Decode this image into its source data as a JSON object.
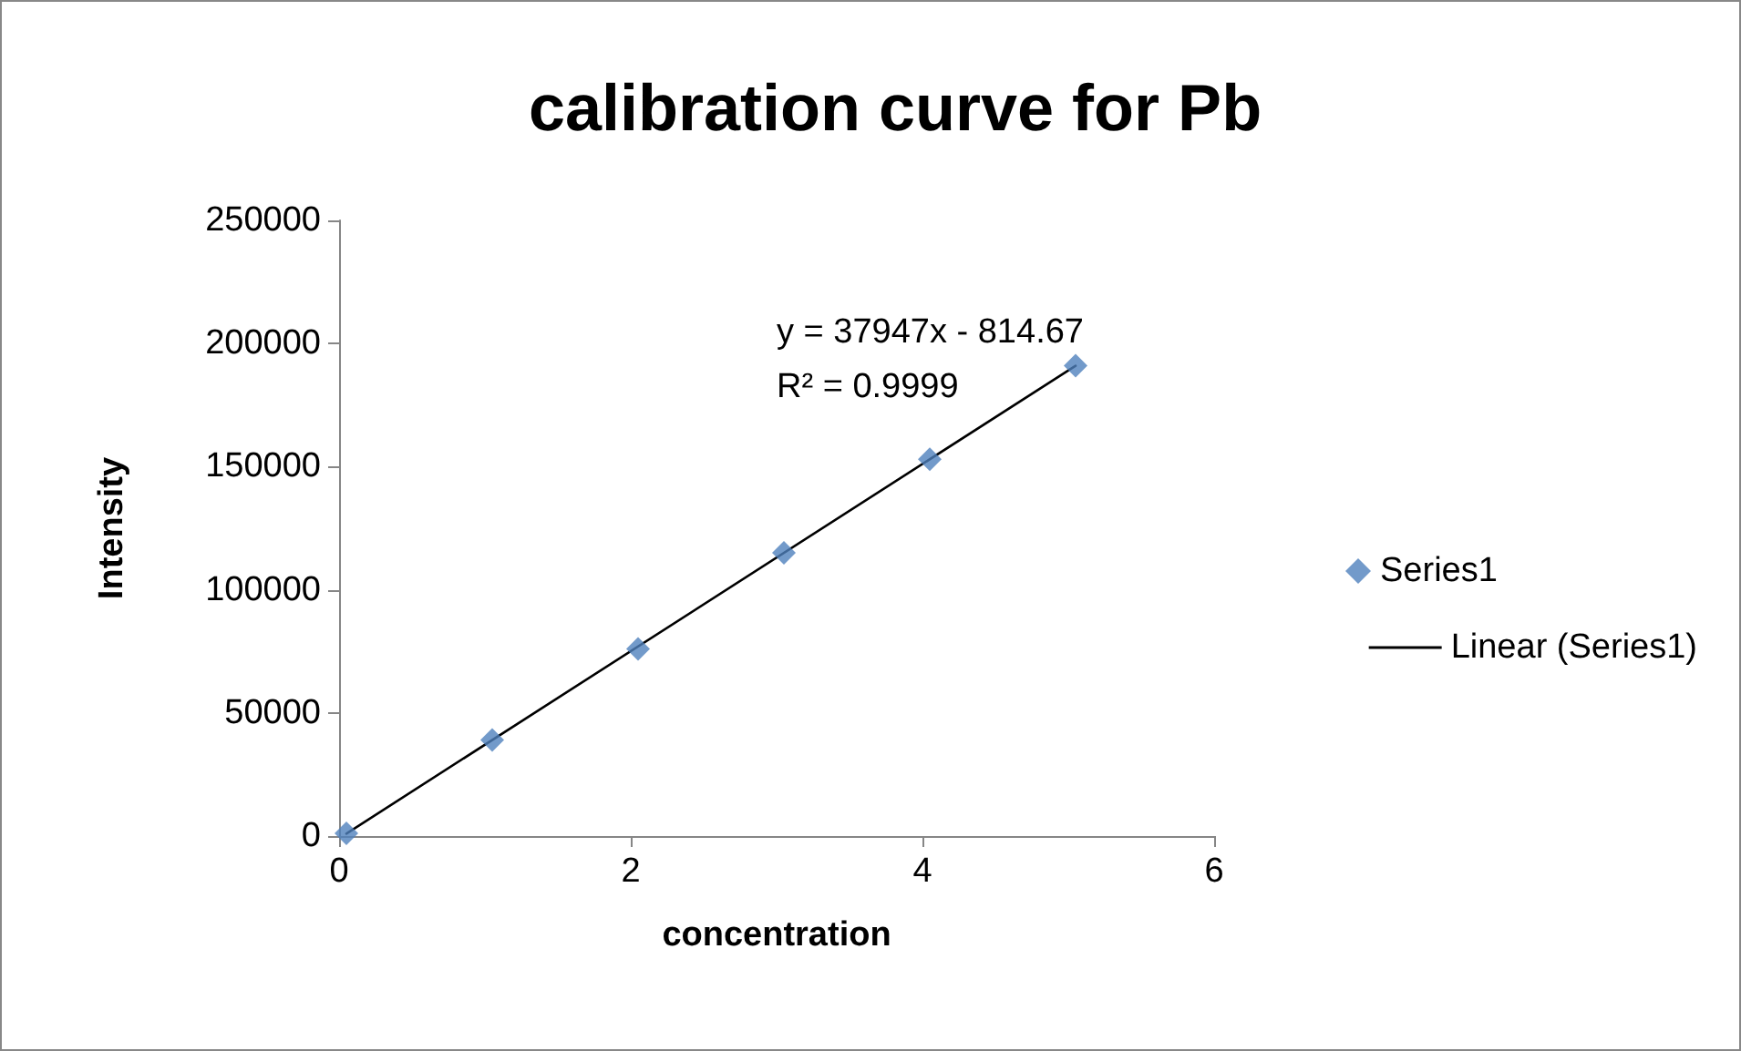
{
  "chart_data": {
    "type": "scatter",
    "title": "calibration curve for Pb",
    "xlabel": "concentration",
    "ylabel": "Intensity",
    "annotations": [
      "y = 37947x - 814.67",
      "R² = 0.9999"
    ],
    "xlim": [
      0,
      6
    ],
    "xticks": [
      0,
      2,
      4,
      6
    ],
    "ylim": [
      0,
      250000
    ],
    "yticks": [
      0,
      50000,
      100000,
      150000,
      200000,
      250000
    ],
    "grid": false,
    "legend": "right",
    "marker": "diamond",
    "series": [
      {
        "name": "Series1",
        "color": "#4f81bd",
        "x": [
          0.05,
          1.05,
          2.05,
          3.05,
          4.05,
          5.05
        ],
        "values": [
          1100,
          39000,
          76000,
          115000,
          153000,
          191000
        ]
      },
      {
        "name": "Linear (Series1)",
        "type": "line",
        "color": "#000000",
        "marker": "none",
        "line_style": "solid",
        "x": [
          0.05,
          5.05
        ],
        "values": [
          1000,
          191000
        ]
      }
    ]
  }
}
